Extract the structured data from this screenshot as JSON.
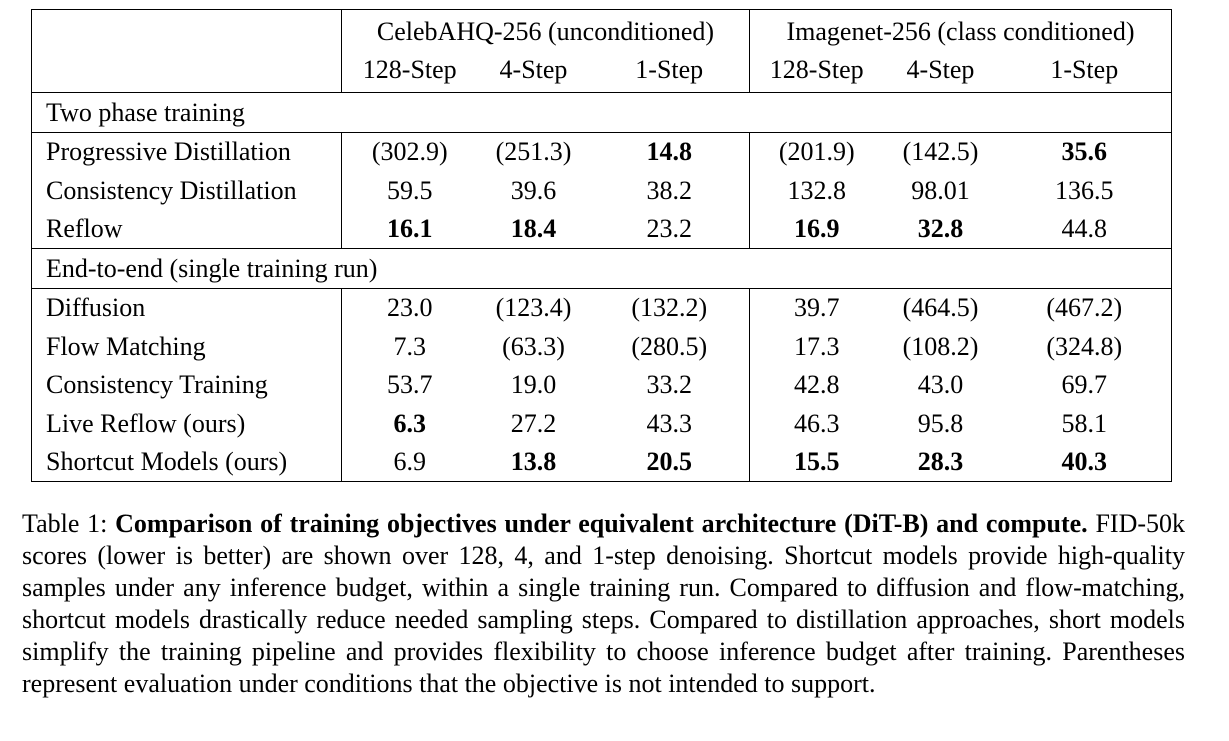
{
  "table": {
    "groups": [
      {
        "label": "CelebAHQ-256 (unconditioned)"
      },
      {
        "label": "Imagenet-256 (class conditioned)"
      }
    ],
    "steps": [
      "128-Step",
      "4-Step",
      "1-Step",
      "128-Step",
      "4-Step",
      "1-Step"
    ],
    "sections": [
      {
        "label": "Two phase training",
        "rows": [
          {
            "method": "Progressive Distillation",
            "values": [
              "(302.9)",
              "(251.3)",
              "14.8",
              "(201.9)",
              "(142.5)",
              "35.6"
            ],
            "bold": [
              false,
              false,
              true,
              false,
              false,
              true
            ]
          },
          {
            "method": "Consistency Distillation",
            "values": [
              "59.5",
              "39.6",
              "38.2",
              "132.8",
              "98.01",
              "136.5"
            ],
            "bold": [
              false,
              false,
              false,
              false,
              false,
              false
            ]
          },
          {
            "method": "Reflow",
            "values": [
              "16.1",
              "18.4",
              "23.2",
              "16.9",
              "32.8",
              "44.8"
            ],
            "bold": [
              true,
              true,
              false,
              true,
              true,
              false
            ]
          }
        ]
      },
      {
        "label": "End-to-end (single training run)",
        "rows": [
          {
            "method": "Diffusion",
            "values": [
              "23.0",
              "(123.4)",
              "(132.2)",
              "39.7",
              "(464.5)",
              "(467.2)"
            ],
            "bold": [
              false,
              false,
              false,
              false,
              false,
              false
            ]
          },
          {
            "method": "Flow Matching",
            "values": [
              "7.3",
              "(63.3)",
              "(280.5)",
              "17.3",
              "(108.2)",
              "(324.8)"
            ],
            "bold": [
              false,
              false,
              false,
              false,
              false,
              false
            ]
          },
          {
            "method": "Consistency Training",
            "values": [
              "53.7",
              "19.0",
              "33.2",
              "42.8",
              "43.0",
              "69.7"
            ],
            "bold": [
              false,
              false,
              false,
              false,
              false,
              false
            ]
          },
          {
            "method": "Live Reflow (ours)",
            "values": [
              "6.3",
              "27.2",
              "43.3",
              "46.3",
              "95.8",
              "58.1"
            ],
            "bold": [
              true,
              false,
              false,
              false,
              false,
              false
            ]
          },
          {
            "method": "Shortcut Models (ours)",
            "values": [
              "6.9",
              "13.8",
              "20.5",
              "15.5",
              "28.3",
              "40.3"
            ],
            "bold": [
              false,
              true,
              true,
              true,
              true,
              true
            ]
          }
        ]
      }
    ]
  },
  "caption": {
    "prefix": "Table 1: ",
    "bold_title": "Comparison of training objectives under equivalent architecture (DiT-B) and compute.",
    "body": " FID-50k scores (lower is better) are shown over 128, 4, and 1-step denoising. Shortcut models provide high-quality samples under any inference budget, within a single training run. Compared to diffusion and flow-matching, shortcut models drastically reduce needed sampling steps. Compared to distillation approaches, short models simplify the training pipeline and provides flexibility to choose inference budget after training. Parentheses represent evaluation under conditions that the objective is not intended to support."
  }
}
